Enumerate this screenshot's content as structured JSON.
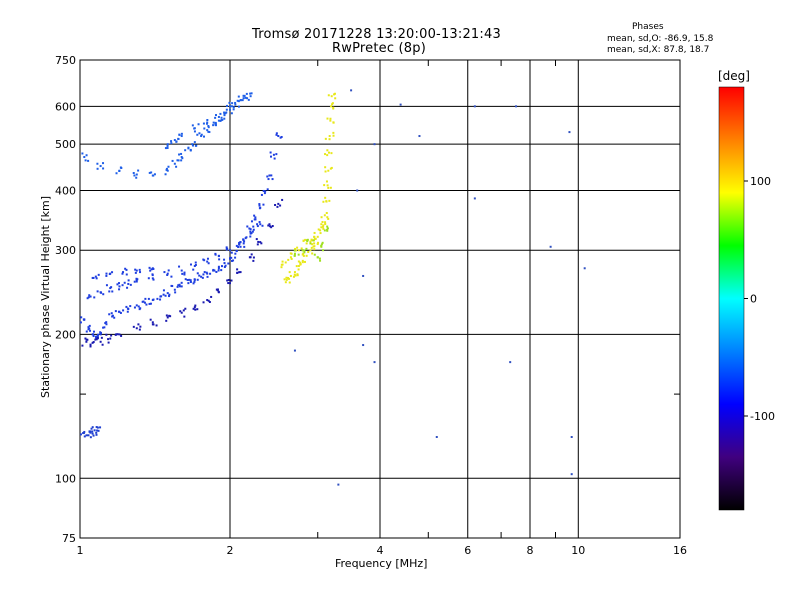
{
  "header": {
    "title": "Tromsø 20171228 13:20:00-13:21:43",
    "subtitle": "RwPretec (8p)",
    "phase_title": "Phases",
    "phase_line1": "mean, sd,O: -86.9, 15.8",
    "phase_line2": "mean, sd,X:  87.8, 18.7"
  },
  "chart_data": {
    "type": "scatter",
    "xlabel": "Frequency [MHz]",
    "ylabel": "Stationary phase Virtual Height [km]",
    "x_scale": "log",
    "y_scale": "log",
    "xlim": [
      1,
      16
    ],
    "ylim": [
      75,
      750
    ],
    "x_ticks": [
      1,
      2,
      4,
      6,
      8,
      10,
      16
    ],
    "x_tick_labels": [
      "1",
      "2",
      "4",
      "6",
      "8",
      "10",
      "16"
    ],
    "x_minor_ticks": [
      3,
      5,
      7,
      9
    ],
    "y_ticks": [
      75,
      100,
      200,
      300,
      400,
      500,
      600,
      750
    ],
    "y_tick_labels": [
      "75",
      "100",
      "200",
      "300",
      "400",
      "500",
      "600",
      "750"
    ],
    "y_minor_ticks": [
      150
    ],
    "grid": true,
    "colorbar": {
      "label": "[deg]",
      "range": [
        -180,
        180
      ],
      "ticks": [
        100,
        0,
        -100
      ],
      "tick_labels": [
        "100",
        "0",
        "-100"
      ],
      "colors": [
        "#ff0000",
        "#ff8000",
        "#ffff00",
        "#00ff00",
        "#00ffff",
        "#0080ff",
        "#0000ff",
        "#40007f",
        "#000000"
      ]
    },
    "series": [
      {
        "trace": "lower-O-trace",
        "color": "#1f3fe0",
        "points": [
          [
            1.02,
            215
          ],
          [
            1.04,
            205
          ],
          [
            1.06,
            200
          ],
          [
            1.08,
            198
          ],
          [
            1.1,
            200
          ],
          [
            1.13,
            210
          ],
          [
            1.16,
            218
          ],
          [
            1.2,
            223
          ],
          [
            1.25,
            226
          ],
          [
            1.3,
            230
          ],
          [
            1.35,
            233
          ],
          [
            1.4,
            236
          ],
          [
            1.45,
            240
          ],
          [
            1.5,
            244
          ],
          [
            1.55,
            248
          ],
          [
            1.6,
            252
          ],
          [
            1.65,
            256
          ],
          [
            1.7,
            260
          ],
          [
            1.75,
            264
          ],
          [
            1.8,
            268
          ],
          [
            1.85,
            272
          ],
          [
            1.9,
            277
          ],
          [
            1.95,
            282
          ],
          [
            2.0,
            288
          ],
          [
            2.05,
            295
          ],
          [
            2.1,
            305
          ],
          [
            2.15,
            318
          ],
          [
            2.2,
            332
          ],
          [
            2.25,
            348
          ],
          [
            2.3,
            368
          ],
          [
            2.35,
            395
          ],
          [
            2.4,
            430
          ],
          [
            2.45,
            475
          ],
          [
            2.5,
            520
          ],
          [
            1.05,
            240
          ],
          [
            1.1,
            245
          ],
          [
            1.15,
            250
          ],
          [
            1.2,
            252
          ],
          [
            1.25,
            255
          ],
          [
            1.3,
            258
          ],
          [
            1.4,
            262
          ],
          [
            1.5,
            268
          ],
          [
            1.6,
            272
          ],
          [
            1.7,
            278
          ],
          [
            1.8,
            284
          ],
          [
            1.9,
            292
          ],
          [
            2.0,
            300
          ],
          [
            2.1,
            312
          ],
          [
            2.2,
            325
          ],
          [
            2.3,
            340
          ],
          [
            1.08,
            262
          ],
          [
            1.15,
            268
          ],
          [
            1.22,
            270
          ],
          [
            1.3,
            272
          ],
          [
            1.4,
            275
          ]
        ]
      },
      {
        "trace": "lower-O-trace-edge",
        "color": "#1a1ab0",
        "points": [
          [
            1.03,
            193
          ],
          [
            1.06,
            192
          ],
          [
            1.1,
            193
          ],
          [
            1.15,
            196
          ],
          [
            1.2,
            200
          ],
          [
            1.3,
            206
          ],
          [
            1.4,
            212
          ],
          [
            1.5,
            217
          ],
          [
            1.6,
            222
          ],
          [
            1.7,
            228
          ],
          [
            1.8,
            236
          ],
          [
            1.9,
            245
          ],
          [
            2.0,
            256
          ],
          [
            2.1,
            270
          ],
          [
            2.2,
            290
          ],
          [
            2.3,
            312
          ],
          [
            2.4,
            340
          ],
          [
            2.5,
            375
          ]
        ]
      },
      {
        "trace": "upper-O-trace",
        "color": "#1f5fe8",
        "points": [
          [
            1.02,
            470
          ],
          [
            1.1,
            450
          ],
          [
            1.2,
            440
          ],
          [
            1.3,
            432
          ],
          [
            1.4,
            430
          ],
          [
            1.5,
            440
          ],
          [
            1.55,
            455
          ],
          [
            1.6,
            470
          ],
          [
            1.65,
            490
          ],
          [
            1.7,
            505
          ],
          [
            1.75,
            520
          ],
          [
            1.8,
            535
          ],
          [
            1.85,
            548
          ],
          [
            1.9,
            560
          ],
          [
            1.95,
            575
          ],
          [
            2.0,
            590
          ],
          [
            2.05,
            605
          ],
          [
            2.1,
            618
          ],
          [
            2.15,
            625
          ],
          [
            2.2,
            630
          ],
          [
            1.5,
            500
          ],
          [
            1.55,
            510
          ],
          [
            1.6,
            520
          ],
          [
            1.7,
            540
          ],
          [
            1.8,
            555
          ],
          [
            1.9,
            570
          ],
          [
            2.0,
            600
          ]
        ]
      },
      {
        "trace": "X-trace",
        "color": "#e8e81a",
        "points": [
          [
            2.6,
            260
          ],
          [
            2.65,
            265
          ],
          [
            2.7,
            270
          ],
          [
            2.75,
            278
          ],
          [
            2.8,
            285
          ],
          [
            2.85,
            292
          ],
          [
            2.9,
            300
          ],
          [
            2.95,
            310
          ],
          [
            3.0,
            320
          ],
          [
            3.05,
            335
          ],
          [
            3.1,
            355
          ],
          [
            3.12,
            380
          ],
          [
            3.14,
            410
          ],
          [
            3.15,
            440
          ],
          [
            3.16,
            480
          ],
          [
            3.17,
            520
          ],
          [
            3.18,
            560
          ],
          [
            3.19,
            600
          ],
          [
            3.2,
            630
          ],
          [
            2.55,
            280
          ],
          [
            2.65,
            290
          ],
          [
            2.75,
            300
          ],
          [
            2.85,
            310
          ],
          [
            2.95,
            320
          ],
          [
            3.05,
            340
          ]
        ]
      },
      {
        "trace": "X-trace-green",
        "color": "#a0e020",
        "points": [
          [
            2.8,
            300
          ],
          [
            2.9,
            310
          ],
          [
            3.0,
            290
          ],
          [
            3.05,
            305
          ],
          [
            2.7,
            295
          ],
          [
            3.1,
            330
          ]
        ]
      },
      {
        "trace": "low-cluster",
        "color": "#2040d0",
        "points": [
          [
            1.02,
            125
          ],
          [
            1.04,
            123
          ],
          [
            1.06,
            124
          ],
          [
            1.08,
            128
          ],
          [
            1.07,
            126
          ]
        ]
      },
      {
        "trace": "scattered-noise",
        "color": "#3050c0",
        "points": [
          [
            2.7,
            185
          ],
          [
            3.3,
            97
          ],
          [
            3.7,
            190
          ],
          [
            3.9,
            175
          ],
          [
            4.4,
            605
          ],
          [
            5.2,
            122
          ],
          [
            6.2,
            385
          ],
          [
            7.3,
            175
          ],
          [
            7.5,
            600
          ],
          [
            8.8,
            305
          ],
          [
            9.6,
            530
          ],
          [
            9.7,
            122
          ],
          [
            10.3,
            275
          ],
          [
            4.8,
            520
          ],
          [
            3.5,
            648
          ],
          [
            3.6,
            400
          ],
          [
            3.9,
            500
          ],
          [
            3.7,
            265
          ],
          [
            6.2,
            600
          ],
          [
            9.7,
            102
          ]
        ]
      }
    ]
  }
}
